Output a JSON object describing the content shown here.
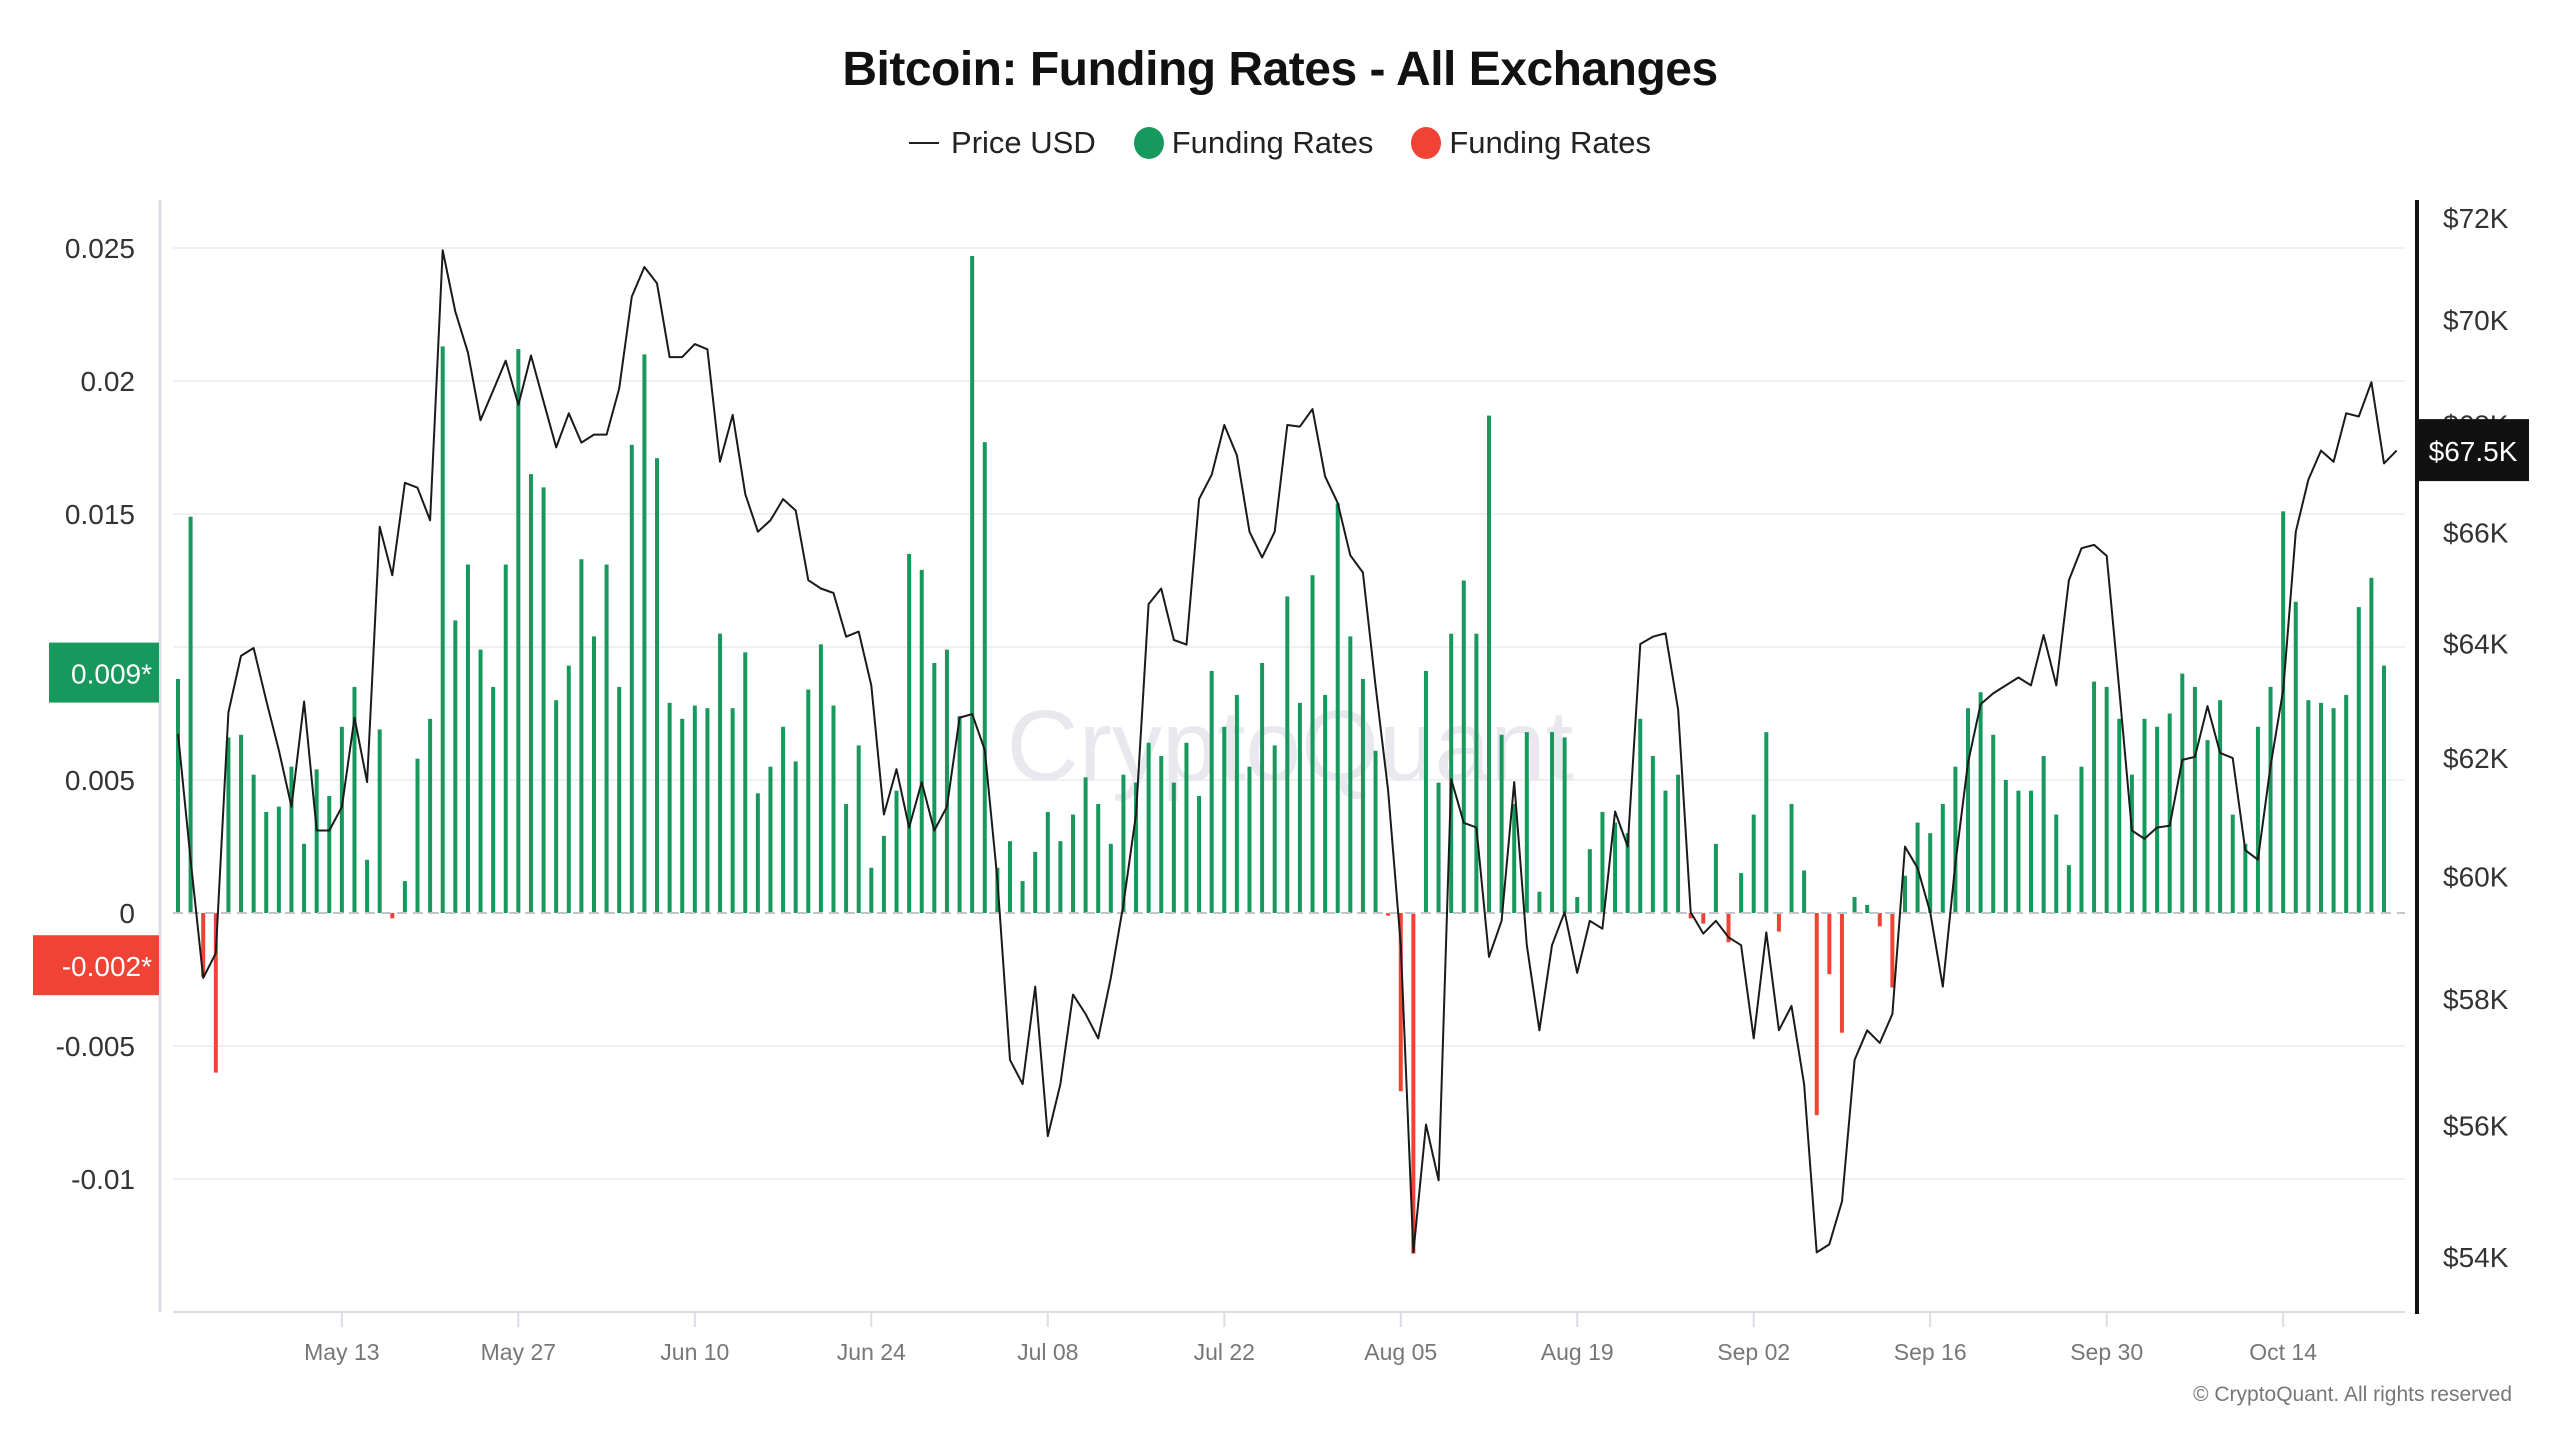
{
  "header": {
    "title": "Bitcoin: Funding Rates - All Exchanges"
  },
  "legend": [
    {
      "label": "Price USD",
      "marker": "line",
      "color": "#222222"
    },
    {
      "label": "Funding Rates",
      "marker": "dot",
      "color": "#17995e"
    },
    {
      "label": "Funding Rates",
      "marker": "dot",
      "color": "#f04235"
    }
  ],
  "watermark": "CryptoQuant",
  "footer": {
    "copyright": "© CryptoQuant. All rights reserved"
  },
  "colors": {
    "positive": "#17995e",
    "negative": "#f04235",
    "price": "#1a1a1a",
    "badge_price_bg": "#111111"
  },
  "chart_data": {
    "type": "bar+line",
    "title": "Bitcoin: Funding Rates - All Exchanges",
    "x_start_date": "2024-04-30",
    "x_ticks": [
      "May 13",
      "May 27",
      "Jun 10",
      "Jun 24",
      "Jul 08",
      "Jul 22",
      "Aug 05",
      "Aug 19",
      "Sep 02",
      "Sep 16",
      "Sep 30",
      "Oct 14"
    ],
    "x_tick_day_offsets": [
      13,
      27,
      41,
      55,
      69,
      83,
      97,
      111,
      125,
      139,
      153,
      167
    ],
    "left_axis": {
      "label": "Funding Rates",
      "ylim": [
        -0.0145,
        0.0265
      ],
      "ticks": [
        0.025,
        0.02,
        0.015,
        0.01,
        0.005,
        0,
        -0.005,
        -0.01
      ],
      "tick_labels": [
        "0.025",
        "0.02",
        "0.015",
        "",
        "0.005",
        "0",
        "-0.005",
        "-0.01"
      ],
      "current_badges": [
        {
          "value": 0.009,
          "label": "0.009*",
          "color": "#17995e"
        },
        {
          "value": -0.002,
          "label": "-0.002*",
          "color": "#f04235"
        }
      ]
    },
    "right_axis": {
      "label": "Price USD",
      "scale": "log",
      "ylim": [
        53000,
        73000
      ],
      "ticks": [
        72000,
        70000,
        68000,
        66000,
        64000,
        62000,
        60000,
        58000,
        56000,
        54000
      ],
      "tick_labels": [
        "$72K",
        "$70K",
        "$68K",
        "$66K",
        "$64K",
        "$62K",
        "$60K",
        "$58K",
        "$56K",
        "$54K"
      ],
      "current_badge": {
        "value": 67500,
        "label": "$67.5K"
      }
    },
    "series": [
      {
        "name": "Funding Rates",
        "type": "bar",
        "values": [
          0.0088,
          0.0149,
          -0.0024,
          -0.006,
          0.0066,
          0.0067,
          0.0052,
          0.0038,
          0.004,
          0.0055,
          0.0026,
          0.0054,
          0.0044,
          0.007,
          0.0085,
          0.002,
          0.0069,
          -0.0002,
          0.0012,
          0.0058,
          0.0073,
          0.0213,
          0.011,
          0.0131,
          0.0099,
          0.0085,
          0.0131,
          0.0212,
          0.0165,
          0.016,
          0.008,
          0.0093,
          0.0133,
          0.0104,
          0.0131,
          0.0085,
          0.0176,
          0.021,
          0.0171,
          0.0079,
          0.0073,
          0.0078,
          0.0077,
          0.0105,
          0.0077,
          0.0098,
          0.0045,
          0.0055,
          0.007,
          0.0057,
          0.0084,
          0.0101,
          0.0078,
          0.0041,
          0.0063,
          0.0017,
          0.0029,
          0.0046,
          0.0135,
          0.0129,
          0.0094,
          0.0099,
          0.0074,
          0.0247,
          0.0177,
          0.0017,
          0.0027,
          0.0012,
          0.0023,
          0.0038,
          0.0027,
          0.0037,
          0.0051,
          0.0041,
          0.0026,
          0.0052,
          0.0049,
          0.0064,
          0.0059,
          0.0049,
          0.0064,
          0.0044,
          0.0091,
          0.007,
          0.0082,
          0.0055,
          0.0094,
          0.0063,
          0.0119,
          0.0079,
          0.0127,
          0.0082,
          0.0154,
          0.0104,
          0.0088,
          0.0061,
          -0.0001,
          -0.0067,
          -0.0128,
          0.0091,
          0.0049,
          0.0105,
          0.0125,
          0.0105,
          0.0187,
          0.0067,
          0.0041,
          0.0068,
          0.0008,
          0.0068,
          0.0066,
          0.0006,
          0.0024,
          0.0038,
          0.0034,
          0.003,
          0.0073,
          0.0059,
          0.0046,
          0.0052,
          -0.0002,
          -0.0004,
          0.0026,
          -0.0011,
          0.0015,
          0.0037,
          0.0068,
          -0.0007,
          0.0041,
          0.0016,
          -0.0076,
          -0.0023,
          -0.0045,
          0.0006,
          0.0003,
          -0.0005,
          -0.0028,
          0.0014,
          0.0034,
          0.003,
          0.0041,
          0.0055,
          0.0077,
          0.0083,
          0.0067,
          0.005,
          0.0046,
          0.0046,
          0.0059,
          0.0037,
          0.0018,
          0.0055,
          0.0087,
          0.0085,
          0.0073,
          0.0052,
          0.0073,
          0.007,
          0.0075,
          0.009,
          0.0085,
          0.0065,
          0.008,
          0.0037,
          0.0026,
          0.007,
          0.0085,
          0.0151,
          0.0117,
          0.008,
          0.0079,
          0.0077,
          0.0082,
          0.0115,
          0.0126,
          0.0093
        ]
      },
      {
        "name": "Price USD",
        "type": "line",
        "values": [
          62420,
          60280,
          58340,
          58740,
          62790,
          63780,
          63920,
          63000,
          62140,
          61170,
          62980,
          60770,
          60770,
          61170,
          62700,
          61590,
          66100,
          65220,
          66910,
          66820,
          66220,
          71360,
          70160,
          69370,
          68080,
          68640,
          69210,
          68370,
          69310,
          68430,
          67570,
          68210,
          67660,
          67810,
          67810,
          68680,
          70450,
          71030,
          70710,
          69280,
          69280,
          69530,
          69430,
          67300,
          68180,
          66700,
          66010,
          66220,
          66610,
          66400,
          65130,
          64980,
          64900,
          64120,
          64210,
          63260,
          61040,
          61810,
          60820,
          61590,
          60770,
          61170,
          62700,
          62760,
          62140,
          59950,
          57030,
          56650,
          58200,
          55840,
          56650,
          58070,
          57760,
          57370,
          58340,
          59540,
          61040,
          64700,
          64980,
          64060,
          63980,
          66610,
          67060,
          67990,
          67420,
          66010,
          65540,
          66010,
          67990,
          67960,
          68290,
          67030,
          66540,
          65580,
          65270,
          63260,
          61450,
          58870,
          54070,
          56020,
          55160,
          61640,
          60900,
          60820,
          58680,
          59270,
          61590,
          58870,
          57500,
          58870,
          59410,
          58420,
          59270,
          59140,
          61090,
          60500,
          63990,
          64120,
          64180,
          62840,
          59410,
          59060,
          59270,
          59000,
          58870,
          57370,
          59080,
          57500,
          57890,
          56650,
          54070,
          54190,
          54840,
          57030,
          57500,
          57300,
          57760,
          60500,
          60140,
          59410,
          58200,
          60220,
          61920,
          62930,
          63120,
          63260,
          63400,
          63260,
          64150,
          63260,
          65130,
          65710,
          65770,
          65570,
          63180,
          60770,
          60630,
          60820,
          60850,
          61970,
          62020,
          62900,
          62090,
          62000,
          60440,
          60280,
          61860,
          63180,
          66010,
          66970,
          67510,
          67300,
          68210,
          68150,
          68800,
          67270,
          67510
        ]
      }
    ]
  }
}
